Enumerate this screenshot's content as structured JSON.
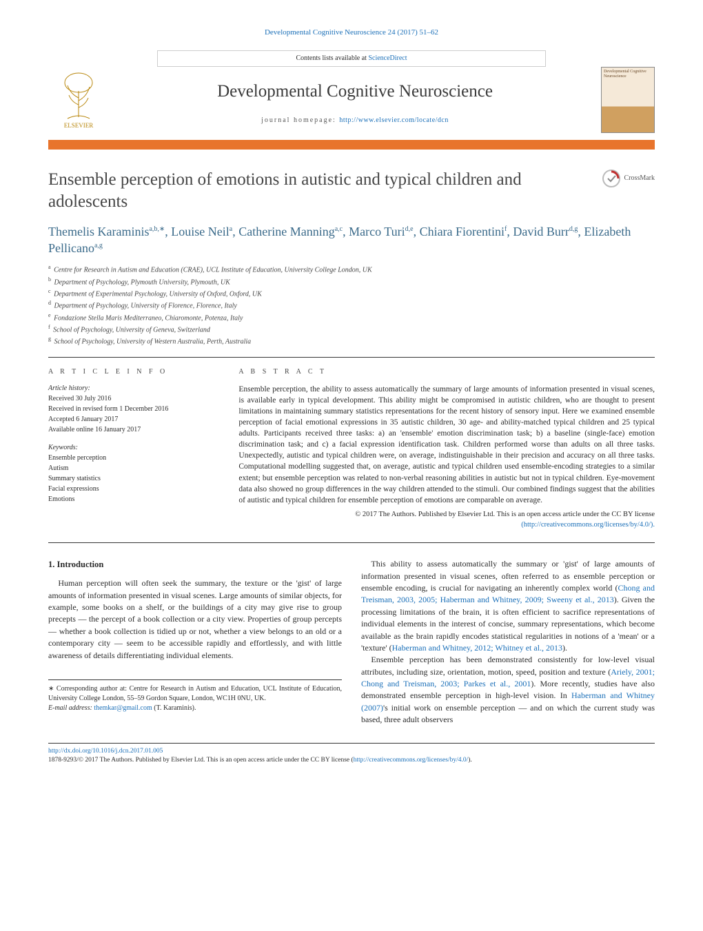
{
  "header": {
    "citation": "Developmental Cognitive Neuroscience 24 (2017) 51–62",
    "contents_prefix": "Contents lists available at ",
    "contents_link": "ScienceDirect",
    "journal_title": "Developmental Cognitive Neuroscience",
    "homepage_label": "journal homepage: ",
    "homepage_url": "http://www.elsevier.com/locate/dcn",
    "publisher_logo_text": "ELSEVIER",
    "cover_caption": "Developmental Cognitive Neuroscience"
  },
  "crossmark_label": "CrossMark",
  "article": {
    "title": "Ensemble perception of emotions in autistic and typical children and adolescents",
    "authors_html_parts": [
      {
        "name": "Themelis Karaminis",
        "sup": "a,b,∗"
      },
      {
        "name": "Louise Neil",
        "sup": "a"
      },
      {
        "name": "Catherine Manning",
        "sup": "a,c"
      },
      {
        "name": "Marco Turi",
        "sup": "d,e"
      },
      {
        "name": "Chiara Fiorentini",
        "sup": "f"
      },
      {
        "name": "David Burr",
        "sup": "d,g"
      },
      {
        "name": "Elizabeth Pellicano",
        "sup": "a,g"
      }
    ],
    "affiliations": [
      {
        "sup": "a",
        "text": "Centre for Research in Autism and Education (CRAE), UCL Institute of Education, University College London, UK"
      },
      {
        "sup": "b",
        "text": "Department of Psychology, Plymouth University, Plymouth, UK"
      },
      {
        "sup": "c",
        "text": "Department of Experimental Psychology, University of Oxford, Oxford, UK"
      },
      {
        "sup": "d",
        "text": "Department of Psychology, University of Florence, Florence, Italy"
      },
      {
        "sup": "e",
        "text": "Fondazione Stella Maris Mediterraneo, Chiaromonte, Potenza, Italy"
      },
      {
        "sup": "f",
        "text": "School of Psychology, University of Geneva, Switzerland"
      },
      {
        "sup": "g",
        "text": "School of Psychology, University of Western Australia, Perth, Australia"
      }
    ]
  },
  "info": {
    "heading": "a r t i c l e   i n f o",
    "history_label": "Article history:",
    "history": [
      "Received 30 July 2016",
      "Received in revised form 1 December 2016",
      "Accepted 6 January 2017",
      "Available online 16 January 2017"
    ],
    "keywords_label": "Keywords:",
    "keywords": [
      "Ensemble perception",
      "Autism",
      "Summary statistics",
      "Facial expressions",
      "Emotions"
    ]
  },
  "abstract": {
    "heading": "a b s t r a c t",
    "text": "Ensemble perception, the ability to assess automatically the summary of large amounts of information presented in visual scenes, is available early in typical development. This ability might be compromised in autistic children, who are thought to present limitations in maintaining summary statistics representations for the recent history of sensory input. Here we examined ensemble perception of facial emotional expressions in 35 autistic children, 30 age- and ability-matched typical children and 25 typical adults. Participants received three tasks: a) an 'ensemble' emotion discrimination task; b) a baseline (single-face) emotion discrimination task; and c) a facial expression identification task. Children performed worse than adults on all three tasks. Unexpectedly, autistic and typical children were, on average, indistinguishable in their precision and accuracy on all three tasks. Computational modelling suggested that, on average, autistic and typical children used ensemble-encoding strategies to a similar extent; but ensemble perception was related to non-verbal reasoning abilities in autistic but not in typical children. Eye-movement data also showed no group differences in the way children attended to the stimuli. Our combined findings suggest that the abilities of autistic and typical children for ensemble perception of emotions are comparable on average.",
    "copyright": "© 2017 The Authors. Published by Elsevier Ltd. This is an open access article under the CC BY license",
    "license_url": "(http://creativecommons.org/licenses/by/4.0/)."
  },
  "body": {
    "section_heading": "1.  Introduction",
    "p1": "Human perception will often seek the summary, the texture or the 'gist' of large amounts of information presented in visual scenes. Large amounts of similar objects, for example, some books on a shelf, or the buildings of a city may give rise to group precepts — the percept of a book collection or a city view. Properties of group percepts — whether a book collection is tidied up or not, whether a view belongs to an old or a contemporary city — seem to be accessible rapidly and effortlessly, and with little awareness of details differentiating individual elements.",
    "p2a": "This ability to assess automatically the summary or 'gist' of large amounts of information presented in visual scenes, often referred to as ensemble perception or ensemble encoding, is crucial for navigating an inherently complex world (",
    "p2_cite1": "Chong and Treisman, 2003, 2005; Haberman and Whitney, 2009; Sweeny et al., 2013",
    "p2b": "). Given the processing limitations of the brain, it is often efficient to sacrifice representations of individual elements in the interest of concise, summary representations, which become available as the brain rapidly encodes statistical regularities in notions of a 'mean' or a 'texture' (",
    "p2_cite2": "Haberman and Whitney, 2012; Whitney et al., 2013",
    "p2c": ").",
    "p3a": "Ensemble perception has been demonstrated consistently for low-level visual attributes, including size, orientation, motion, speed, position and texture (",
    "p3_cite1": "Ariely, 2001; Chong and Treisman, 2003; Parkes et al., 2001",
    "p3b": "). More recently, studies have also demonstrated ensemble perception in high-level vision. In ",
    "p3_cite2": "Haberman and Whitney (2007)",
    "p3c": "'s initial work on ensemble perception — and on which the current study was based, three adult observers"
  },
  "footnote": {
    "corresponding": "∗ Corresponding author at: Centre for Research in Autism and Education, UCL Institute of Education, University College London, 55–59 Gordon Square, London, WC1H 0NU, UK.",
    "email_label": "E-mail address: ",
    "email": "themkar@gmail.com",
    "email_who": " (T. Karaminis)."
  },
  "footer": {
    "doi": "http://dx.doi.org/10.1016/j.dcn.2017.01.005",
    "line": "1878-9293/© 2017 The Authors. Published by Elsevier Ltd. This is an open access article under the CC BY license (",
    "lic": "http://creativecommons.org/licenses/by/4.0/",
    "line_end": ")."
  },
  "colors": {
    "link": "#1a6fb8",
    "accent_bar": "#e8742c",
    "author": "#3a6a8a",
    "text": "#2a2a2a"
  }
}
